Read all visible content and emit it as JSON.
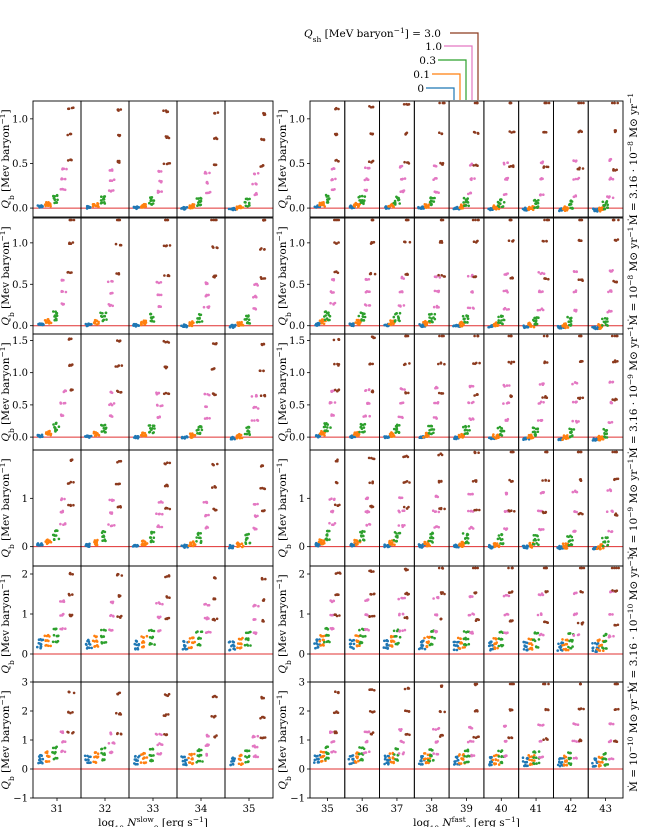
{
  "legend": {
    "title_var": "Q",
    "title_sub": "sh",
    "title_unit": " [MeV baryon",
    "title_exp": "−1",
    "title_tail": "] = ",
    "entries": [
      "3.0",
      "1.0",
      "0.3",
      "0.1",
      "0"
    ]
  },
  "colors": {
    "q0": "#1f77b4",
    "q01": "#ff7f0e",
    "q03": "#2ca02c",
    "q10": "#e377c2",
    "q30": "#8c3a1e",
    "zero_line": "#e03030"
  },
  "ylabel": {
    "var": "Q",
    "sub": "b",
    "text": " [Mev baryon",
    "exp": "−1",
    "tail": "]"
  },
  "left_xlabel": {
    "pre": "log",
    "sub": "10",
    "var": " N",
    "sup": "slow",
    "sub2": "8",
    "tail": " [erg s",
    "exp": "−1",
    "end": "]"
  },
  "right_xlabel": {
    "pre": "log",
    "sub": "10",
    "var": " N",
    "sup": "fast",
    "sub2": "8",
    "tail": " [erg s",
    "exp": "−1",
    "end": "]"
  },
  "left_xticks": [
    "31",
    "32",
    "33",
    "34",
    "35"
  ],
  "right_xticks": [
    "35",
    "36",
    "37",
    "38",
    "39",
    "40",
    "41",
    "42",
    "43"
  ],
  "rows": [
    {
      "mdot_label": "Ṁ = 3.16 · 10",
      "mdot_exp": "−8",
      "mdot_unit": " M⊙ yr",
      "mdot_unit_exp": "−1",
      "ylim": [
        -0.1,
        1.2
      ],
      "yticks": [
        "0.0",
        "0.5",
        "1.0"
      ],
      "ytick_values": [
        0.0,
        0.5,
        1.0
      ]
    },
    {
      "mdot_label": "Ṁ = 10",
      "mdot_exp": "−8",
      "mdot_unit": " M⊙ yr",
      "mdot_unit_exp": "−1",
      "ylim": [
        -0.1,
        1.3
      ],
      "yticks": [
        "0.0",
        "0.5",
        "1.0"
      ],
      "ytick_values": [
        0.0,
        0.5,
        1.0
      ]
    },
    {
      "mdot_label": "Ṁ = 3.16 · 10",
      "mdot_exp": "−9",
      "mdot_unit": " M⊙ yr",
      "mdot_unit_exp": "−1",
      "ylim": [
        -0.2,
        1.6
      ],
      "yticks": [
        "0.0",
        "0.5",
        "1.0",
        "1.5"
      ],
      "ytick_values": [
        0.0,
        0.5,
        1.0,
        1.5
      ]
    },
    {
      "mdot_label": "Ṁ = 10",
      "mdot_exp": "−9",
      "mdot_unit": " M⊙ yr",
      "mdot_unit_exp": "−1",
      "ylim": [
        -0.4,
        2.0
      ],
      "yticks": [
        "0",
        "1"
      ],
      "ytick_values": [
        0,
        1
      ]
    },
    {
      "mdot_label": "Ṁ = 3.16 · 10",
      "mdot_exp": "−10",
      "mdot_unit": " M⊙ yr",
      "mdot_unit_exp": "−1",
      "ylim": [
        -0.7,
        2.2
      ],
      "yticks": [
        "0",
        "1",
        "2"
      ],
      "ytick_values": [
        0,
        1,
        2
      ]
    },
    {
      "mdot_label": "Ṁ = 10",
      "mdot_exp": "−10",
      "mdot_unit": " M⊙ yr",
      "mdot_unit_exp": "−1",
      "ylim": [
        -1,
        3
      ],
      "yticks": [
        "−1",
        "0",
        "1",
        "2",
        "3"
      ],
      "ytick_values": [
        -1,
        0,
        1,
        2,
        3
      ]
    }
  ],
  "chart_data": {
    "type": "scatter",
    "series": [
      {
        "name": "0"
      },
      {
        "name": "0.1"
      },
      {
        "name": "0.3"
      },
      {
        "name": "1.0"
      },
      {
        "name": "3.0"
      }
    ],
    "row_base_values": [
      {
        "q0": 0.02,
        "q01": 0.05,
        "q03": 0.12,
        "q10": 0.38,
        "q30": 0.97
      },
      {
        "q0": 0.02,
        "q01": 0.06,
        "q03": 0.14,
        "q10": 0.48,
        "q30": 1.17
      },
      {
        "q0": 0.02,
        "q01": 0.07,
        "q03": 0.18,
        "q10": 0.62,
        "q30": 1.32
      },
      {
        "q0": 0.05,
        "q01": 0.12,
        "q03": 0.28,
        "q10": 0.85,
        "q30": 1.55
      },
      {
        "q0": 0.3,
        "q01": 0.4,
        "q03": 0.55,
        "q10": 1.15,
        "q30": 1.75
      },
      {
        "q0": 0.4,
        "q01": 0.5,
        "q03": 0.65,
        "q10": 1.1,
        "q30": 2.3
      }
    ],
    "ylabel": "Q_b [Mev baryon^-1]",
    "left_xlabel": "log10 N8^slow [erg s^-1]",
    "right_xlabel": "log10 N8^fast [erg s^-1]"
  }
}
